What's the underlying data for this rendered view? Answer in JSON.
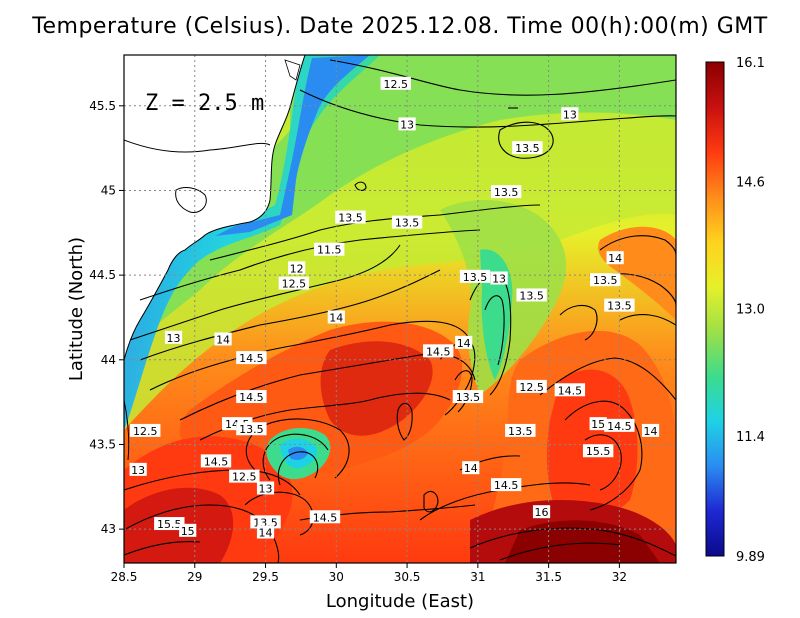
{
  "title": "Temperature (Celsius). Date 2025.12.08. Time 00(h):00(m) GMT",
  "depth_label": "Z = 2.5 m",
  "x_axis_title": "Longitude (East)",
  "y_axis_title": "Latitude (North)",
  "x_ticks": [
    "28.5",
    "29",
    "29.5",
    "30",
    "30.5",
    "31",
    "31.5",
    "32"
  ],
  "y_ticks": [
    "45.5",
    "45",
    "44.5",
    "44",
    "43.5",
    "43"
  ],
  "colorbar": {
    "labels": [
      "16.1",
      "14.6",
      "13.0",
      "11.4",
      "9.89"
    ],
    "max": 16.1,
    "min": 9.89,
    "colors": [
      "#8b0000",
      "#c81010",
      "#ff3a10",
      "#ff8c1a",
      "#ffd21e",
      "#e6f02a",
      "#9ee046",
      "#3cdc8c",
      "#1ed2e6",
      "#2a8cf0",
      "#1e28d2",
      "#0a0a8c"
    ]
  },
  "map_data": {
    "lon_range": [
      28.5,
      32.4
    ],
    "lat_range": [
      42.8,
      45.8
    ],
    "contour_labels": [
      {
        "t": "12.5",
        "lon": 30.42,
        "lat": 45.63
      },
      {
        "t": "13",
        "lon": 30.5,
        "lat": 45.39
      },
      {
        "t": "13",
        "lon": 31.65,
        "lat": 45.45
      },
      {
        "t": "13.5",
        "lon": 31.35,
        "lat": 45.25
      },
      {
        "t": "13.5",
        "lon": 31.2,
        "lat": 44.99
      },
      {
        "t": "13.5",
        "lon": 30.1,
        "lat": 44.84
      },
      {
        "t": "13.5",
        "lon": 30.5,
        "lat": 44.81
      },
      {
        "t": "11.5",
        "lon": 29.95,
        "lat": 44.65
      },
      {
        "t": "12",
        "lon": 29.72,
        "lat": 44.54
      },
      {
        "t": "12.5",
        "lon": 29.7,
        "lat": 44.45
      },
      {
        "t": "13.5",
        "lon": 30.98,
        "lat": 44.49
      },
      {
        "t": "13",
        "lon": 31.15,
        "lat": 44.48
      },
      {
        "t": "13.5",
        "lon": 31.38,
        "lat": 44.38
      },
      {
        "t": "14",
        "lon": 31.97,
        "lat": 44.6
      },
      {
        "t": "13.5",
        "lon": 31.9,
        "lat": 44.47
      },
      {
        "t": "13.5",
        "lon": 32.0,
        "lat": 44.32
      },
      {
        "t": "14",
        "lon": 30.0,
        "lat": 44.25
      },
      {
        "t": "13",
        "lon": 28.85,
        "lat": 44.13
      },
      {
        "t": "14",
        "lon": 29.2,
        "lat": 44.12
      },
      {
        "t": "14",
        "lon": 30.9,
        "lat": 44.1
      },
      {
        "t": "14.5",
        "lon": 30.72,
        "lat": 44.05
      },
      {
        "t": "14.5",
        "lon": 29.4,
        "lat": 44.01
      },
      {
        "t": "12.5",
        "lon": 31.38,
        "lat": 43.84
      },
      {
        "t": "14.5",
        "lon": 31.65,
        "lat": 43.82
      },
      {
        "t": "13.5",
        "lon": 30.93,
        "lat": 43.78
      },
      {
        "t": "14.5",
        "lon": 29.4,
        "lat": 43.78
      },
      {
        "t": "14.5",
        "lon": 29.3,
        "lat": 43.62
      },
      {
        "t": "12.5",
        "lon": 28.65,
        "lat": 43.58
      },
      {
        "t": "13.5",
        "lon": 29.4,
        "lat": 43.59
      },
      {
        "t": "15",
        "lon": 31.85,
        "lat": 43.62
      },
      {
        "t": "14.5",
        "lon": 32.0,
        "lat": 43.61
      },
      {
        "t": "14",
        "lon": 32.22,
        "lat": 43.58
      },
      {
        "t": "13.5",
        "lon": 31.3,
        "lat": 43.58
      },
      {
        "t": "15.5",
        "lon": 31.85,
        "lat": 43.46
      },
      {
        "t": "14.5",
        "lon": 29.15,
        "lat": 43.4
      },
      {
        "t": "13",
        "lon": 28.6,
        "lat": 43.35
      },
      {
        "t": "14",
        "lon": 30.95,
        "lat": 43.36
      },
      {
        "t": "12.5",
        "lon": 29.35,
        "lat": 43.31
      },
      {
        "t": "13",
        "lon": 29.5,
        "lat": 43.24
      },
      {
        "t": "14.5",
        "lon": 31.2,
        "lat": 43.26
      },
      {
        "t": "16",
        "lon": 31.45,
        "lat": 43.1
      },
      {
        "t": "14.5",
        "lon": 29.92,
        "lat": 43.07
      },
      {
        "t": "13.5",
        "lon": 29.5,
        "lat": 43.04
      },
      {
        "t": "15.5",
        "lon": 28.82,
        "lat": 43.03
      },
      {
        "t": "15",
        "lon": 28.95,
        "lat": 42.99
      },
      {
        "t": "14",
        "lon": 29.5,
        "lat": 42.98
      }
    ]
  }
}
